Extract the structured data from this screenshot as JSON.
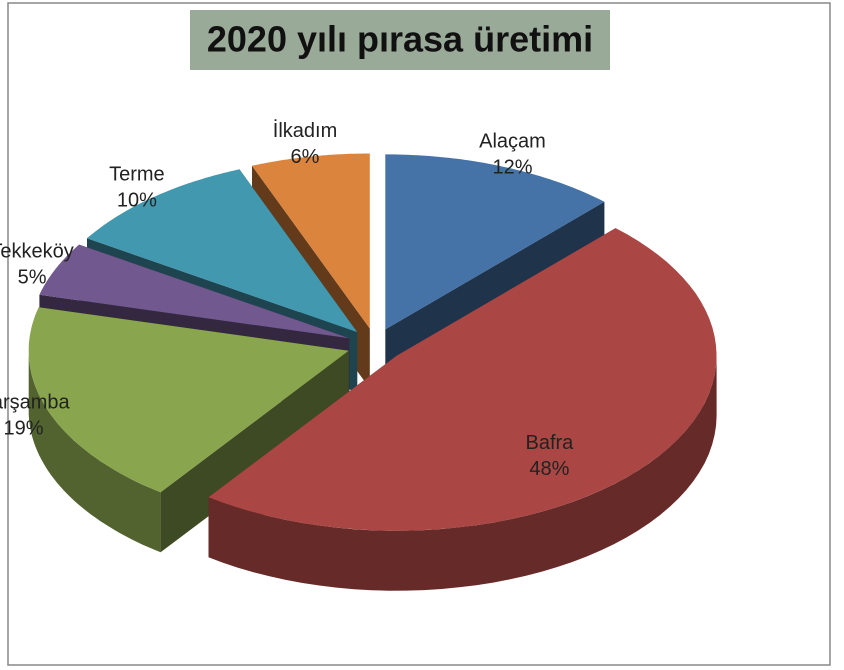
{
  "chart_data": {
    "type": "pie",
    "title": "2020 yılı pırasa üretimi",
    "categories": [
      "Alaçam",
      "Bafra",
      "Çarşamba",
      "Tekkeköy",
      "Terme",
      "İlkadım"
    ],
    "values": [
      12,
      48,
      19,
      5,
      10,
      6
    ],
    "value_labels": [
      "12%",
      "48%",
      "19%",
      "5%",
      "10%",
      "6%"
    ],
    "colors": [
      "#4572a7",
      "#aa4643",
      "#89a54e",
      "#71588f",
      "#4198af",
      "#db843d"
    ]
  }
}
